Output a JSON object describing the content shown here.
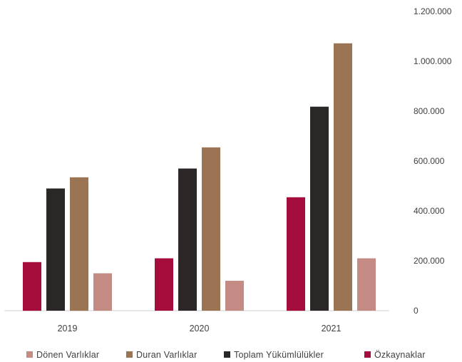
{
  "chart_data": {
    "type": "bar",
    "categories": [
      "2019",
      "2020",
      "2021"
    ],
    "series": [
      {
        "name": "Özkaynaklar",
        "color": "#a50d3c",
        "values": [
          195000,
          210000,
          455000
        ]
      },
      {
        "name": "Toplam Yükümlülükler",
        "color": "#2b2726",
        "values": [
          490000,
          570000,
          818000
        ]
      },
      {
        "name": "Duran Varlıklar",
        "color": "#9b7553",
        "values": [
          535000,
          655000,
          1072000
        ]
      },
      {
        "name": "Dönen Varlıklar",
        "color": "#c38b84",
        "values": [
          150000,
          120000,
          210000
        ]
      }
    ],
    "legend_order": [
      "Dönen Varlıklar",
      "Duran Varlıklar",
      "Toplam Yükümlülükler",
      "Özkaynaklar"
    ],
    "y_ticks": [
      "0",
      "200.000",
      "400.000",
      "600.000",
      "800.000",
      "1.000.000",
      "1.200.000"
    ],
    "ylim": [
      0,
      1200000
    ],
    "y_axis_side": "right",
    "legend_position": "bottom",
    "grid": false
  }
}
